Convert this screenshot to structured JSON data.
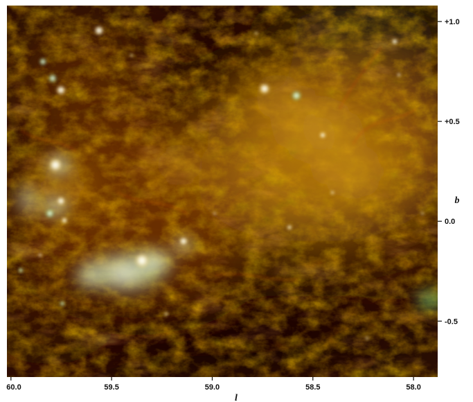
{
  "image": {
    "description_colors": {
      "background_dark": "#1a0a02",
      "dust_red": "#7a2a08",
      "dust_orange": "#c8780c",
      "glow_yellow": "#e8c43a",
      "hot_white": "#f2f6e6",
      "edge_green": "#1e5a1e"
    }
  },
  "axes": {
    "x_label": "l",
    "y_label": "b",
    "x_ticks": [
      {
        "value": 60.0,
        "label": "60.0"
      },
      {
        "value": 59.5,
        "label": "59.5"
      },
      {
        "value": 59.0,
        "label": "59.0"
      },
      {
        "value": 58.5,
        "label": "58.5"
      },
      {
        "value": 58.0,
        "label": "58.0"
      }
    ],
    "y_ticks": [
      {
        "value": 1.0,
        "label": "+1.0"
      },
      {
        "value": 0.5,
        "label": "+0.5"
      },
      {
        "value": 0.0,
        "label": "0.0"
      },
      {
        "value": -0.5,
        "label": "-0.5"
      }
    ],
    "x_range": [
      60.02,
      57.88
    ],
    "y_range": [
      1.08,
      -0.78
    ]
  }
}
